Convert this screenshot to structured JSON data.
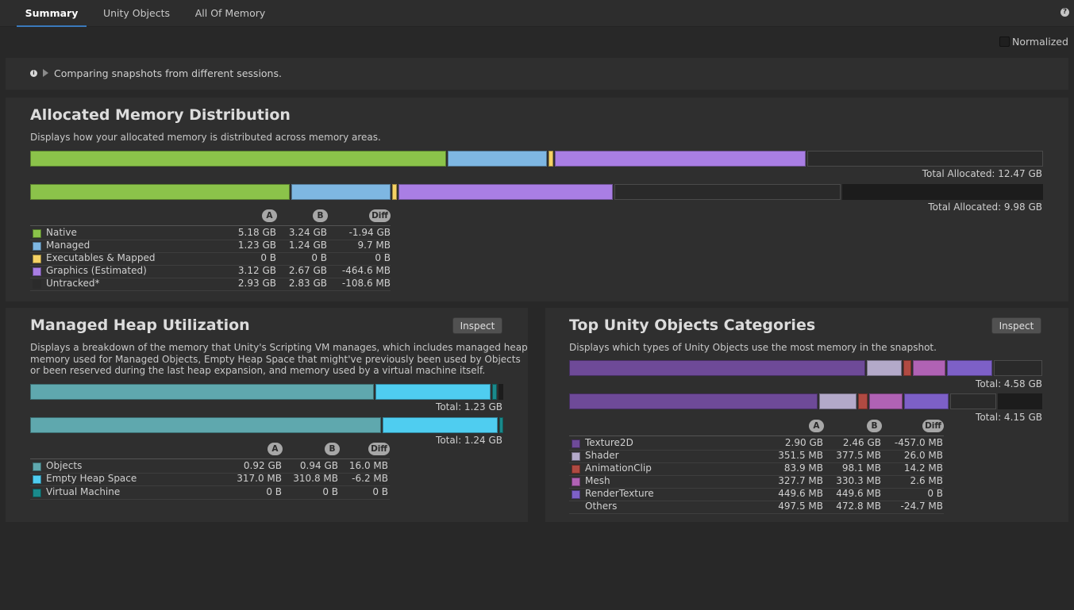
{
  "tabs": [
    {
      "label": "Summary"
    },
    {
      "label": "Unity Objects"
    },
    {
      "label": "All Of Memory"
    }
  ],
  "help_glyph": "?",
  "normalized_label": "Normalized",
  "notice": {
    "text": "Comparing snapshots from different sessions.",
    "icon_glyph": "i"
  },
  "allocated": {
    "title": "Allocated Memory Distribution",
    "description": "Displays how your allocated memory is distributed across memory areas.",
    "total_a": "Total Allocated: 12.47 GB",
    "total_b": "Total Allocated: 9.98 GB",
    "col_a": "A",
    "col_b": "B",
    "col_diff": "Diff",
    "rows": [
      {
        "name": "Native",
        "a": "5.18 GB",
        "b": "3.24 GB",
        "diff": "-1.94 GB",
        "color": "#8bc34a"
      },
      {
        "name": "Managed",
        "a": "1.23 GB",
        "b": "1.24 GB",
        "diff": "9.7 MB",
        "color": "#7eb7e2"
      },
      {
        "name": "Executables & Mapped",
        "a": "0 B",
        "b": "0 B",
        "diff": "0 B",
        "color": "#f5d264"
      },
      {
        "name": "Graphics (Estimated)",
        "a": "3.12 GB",
        "b": "2.67 GB",
        "diff": "-464.6 MB",
        "color": "#a97ee4"
      },
      {
        "name": "Untracked*",
        "a": "2.93 GB",
        "b": "2.83 GB",
        "diff": "-108.6 MB",
        "color": "#2b2b2b"
      }
    ]
  },
  "heap": {
    "title": "Managed Heap Utilization",
    "inspect_label": "Inspect",
    "description_lines": [
      "Displays a breakdown of the memory that Unity's Scripting VM manages, which includes managed heap",
      "memory used for Managed Objects, Empty Heap Space that might've previously been used by Objects",
      "or been reserved during the last heap expansion, and memory used by a virtual machine itself."
    ],
    "total_a": "Total: 1.23 GB",
    "total_b": "Total: 1.24 GB",
    "col_a": "A",
    "col_b": "B",
    "col_diff": "Diff",
    "rows": [
      {
        "name": "Objects",
        "a": "0.92 GB",
        "b": "0.94 GB",
        "diff": "16.0 MB",
        "color": "#5fa8ae"
      },
      {
        "name": "Empty Heap Space",
        "a": "317.0 MB",
        "b": "310.8 MB",
        "diff": "-6.2 MB",
        "color": "#4fcdf0"
      },
      {
        "name": "Virtual Machine",
        "a": "0 B",
        "b": "0 B",
        "diff": "0 B",
        "color": "#1a8a8c"
      }
    ]
  },
  "top_objects": {
    "title": "Top Unity Objects Categories",
    "inspect_label": "Inspect",
    "description": "Displays which types of Unity Objects use the most memory in the snapshot.",
    "total_a": "Total: 4.58 GB",
    "total_b": "Total: 4.15 GB",
    "col_a": "A",
    "col_b": "B",
    "col_diff": "Diff",
    "rows": [
      {
        "name": "Texture2D",
        "a": "2.90 GB",
        "b": "2.46 GB",
        "diff": "-457.0 MB",
        "color": "#6e4a98"
      },
      {
        "name": "Shader",
        "a": "351.5 MB",
        "b": "377.5 MB",
        "diff": "26.0 MB",
        "color": "#b3a9c9"
      },
      {
        "name": "AnimationClip",
        "a": "83.9 MB",
        "b": "98.1 MB",
        "diff": "14.2 MB",
        "color": "#b04a42"
      },
      {
        "name": "Mesh",
        "a": "327.7 MB",
        "b": "330.3 MB",
        "diff": "2.6 MB",
        "color": "#b062b4"
      },
      {
        "name": "RenderTexture",
        "a": "449.6 MB",
        "b": "449.6 MB",
        "diff": "0 B",
        "color": "#7d60c7"
      },
      {
        "name": "Others",
        "a": "497.5 MB",
        "b": "472.8 MB",
        "diff": "-24.7 MB",
        "color": "#2f2f2f"
      }
    ]
  }
}
